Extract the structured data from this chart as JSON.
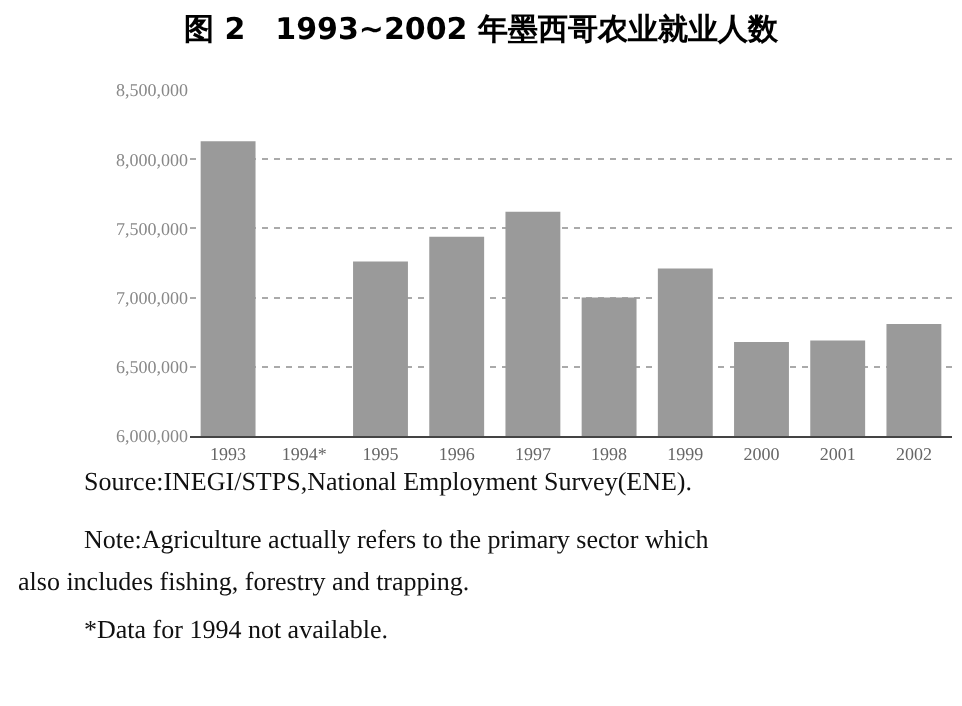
{
  "chart_data": {
    "type": "bar",
    "title": "图 2　1993~2002 年墨西哥农业就业人数",
    "categories": [
      "1993",
      "1994*",
      "1995",
      "1996",
      "1997",
      "1998",
      "1999",
      "2000",
      "2001",
      "2002"
    ],
    "values": [
      8130000,
      null,
      7260000,
      7440000,
      7620000,
      7000000,
      7210000,
      6680000,
      6690000,
      6810000
    ],
    "color": "#9a9a9a",
    "ylim": [
      6000000,
      8500000
    ],
    "yticks": [
      {
        "value": 6000000,
        "label": "6,000,000"
      },
      {
        "value": 6500000,
        "label": "6,500,000"
      },
      {
        "value": 7000000,
        "label": "7,000,000"
      },
      {
        "value": 7500000,
        "label": "7,500,000"
      },
      {
        "value": 8000000,
        "label": "8,000,000"
      },
      {
        "value": 8500000,
        "label": "8,500,000"
      }
    ],
    "grid": "y",
    "annotations": [
      "Source:INEGI/STPS,National Employment Survey(ENE).",
      "Note:Agriculture actually refers to the primary sector which also includes fishing, forestry and trapping.",
      "*Data for 1994 not available."
    ]
  }
}
